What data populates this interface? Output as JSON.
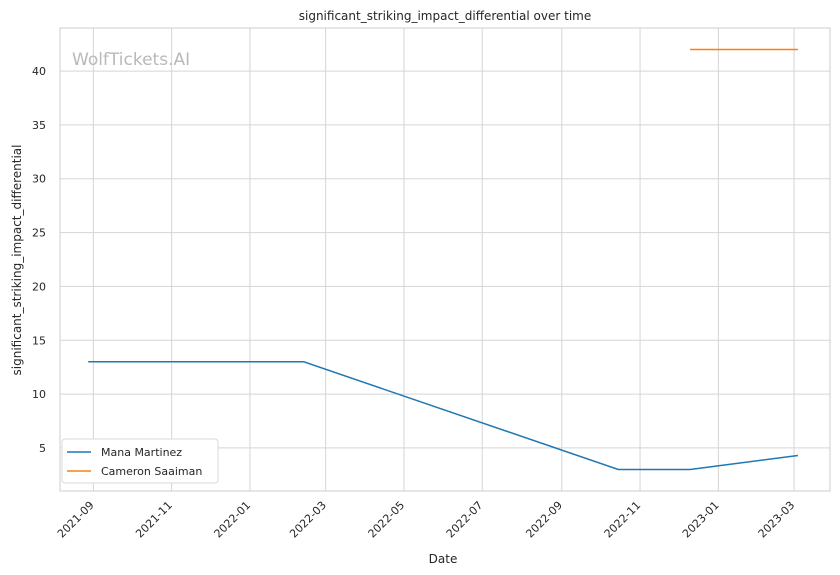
{
  "chart_data": {
    "type": "line",
    "title": "significant_striking_impact_differential over time",
    "xlabel": "Date",
    "ylabel": "significant_striking_impact_differential",
    "watermark": "WolfTickets.AI",
    "x_ticks": [
      "2021-09",
      "2021-11",
      "2022-01",
      "2022-03",
      "2022-05",
      "2022-07",
      "2022-09",
      "2022-11",
      "2023-01",
      "2023-03"
    ],
    "x_tick_dates": [
      "2021-09-01",
      "2021-11-01",
      "2022-01-01",
      "2022-03-01",
      "2022-05-01",
      "2022-07-01",
      "2022-09-01",
      "2022-11-01",
      "2023-01-01",
      "2023-03-01"
    ],
    "xlim": [
      "2021-08-06",
      "2023-03-29"
    ],
    "y_ticks": [
      5,
      10,
      15,
      20,
      25,
      30,
      35,
      40
    ],
    "ylim": [
      1.0,
      44.0
    ],
    "grid": true,
    "legend_position": "lower-left",
    "series": [
      {
        "name": "Mana Martinez",
        "color": "#1f77b4",
        "x": [
          "2021-08-28",
          "2022-02-12",
          "2022-10-15",
          "2022-12-10",
          "2023-03-04"
        ],
        "y": [
          13,
          13,
          3,
          3,
          4.3
        ]
      },
      {
        "name": "Cameron Saaiman",
        "color": "#ff7f0e",
        "x": [
          "2022-12-10",
          "2023-03-04"
        ],
        "y": [
          42,
          42
        ]
      }
    ]
  }
}
